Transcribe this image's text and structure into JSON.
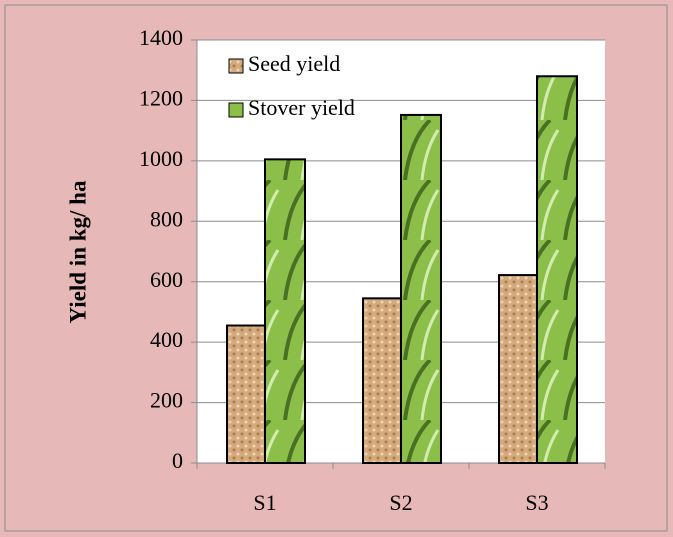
{
  "chart_data": {
    "type": "bar",
    "y_label": "Yield in kg/ ha",
    "categories": [
      "S1",
      "S2",
      "S3"
    ],
    "series": [
      {
        "name": "Seed yield",
        "color": "#d4aa7c",
        "values": [
          455,
          545,
          622
        ]
      },
      {
        "name": "Stover yield",
        "color": "#8cbf4a",
        "values": [
          1005,
          1152,
          1280
        ]
      }
    ],
    "ylim": [
      0,
      1400
    ],
    "yticks": [
      0,
      200,
      400,
      600,
      800,
      1000,
      1200,
      1400
    ],
    "grid": true,
    "legend": "top-left"
  }
}
